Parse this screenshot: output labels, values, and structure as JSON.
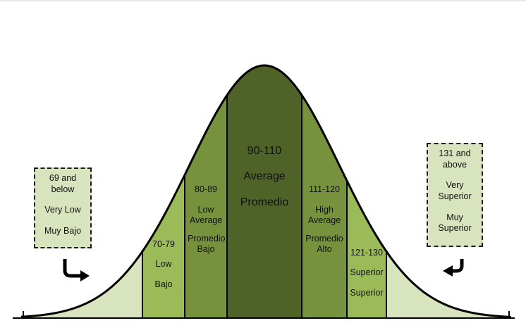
{
  "bands": [
    {
      "range": "70-79",
      "en": "Low",
      "es": "Bajo",
      "color": "#9bbb59"
    },
    {
      "range": "80-89",
      "en": "Low Average",
      "es": "Promedio Bajo",
      "color": "#76923c"
    },
    {
      "range": "90-110",
      "en": "Average",
      "es": "Promedio",
      "color": "#4f6228"
    },
    {
      "range": "111-120",
      "en": "High Average",
      "es": "Promedio Alto",
      "color": "#76923c"
    },
    {
      "range": "121-130",
      "en": "Superior",
      "es": "Superior",
      "color": "#9bbb59"
    }
  ],
  "tails": {
    "color": "#d7e4bd"
  },
  "left_box": {
    "line1": "69 and",
    "line2": "below",
    "en": "Very Low",
    "es": "Muy Bajo"
  },
  "right_box": {
    "line1": "131 and",
    "line2": "above",
    "en1": "Very",
    "en2": "Superior",
    "es1": "Muy",
    "es2": "Superior"
  },
  "icons": {
    "left_arrow": "curved-arrow-down-right-icon",
    "right_arrow": "curved-arrow-down-left-icon"
  }
}
